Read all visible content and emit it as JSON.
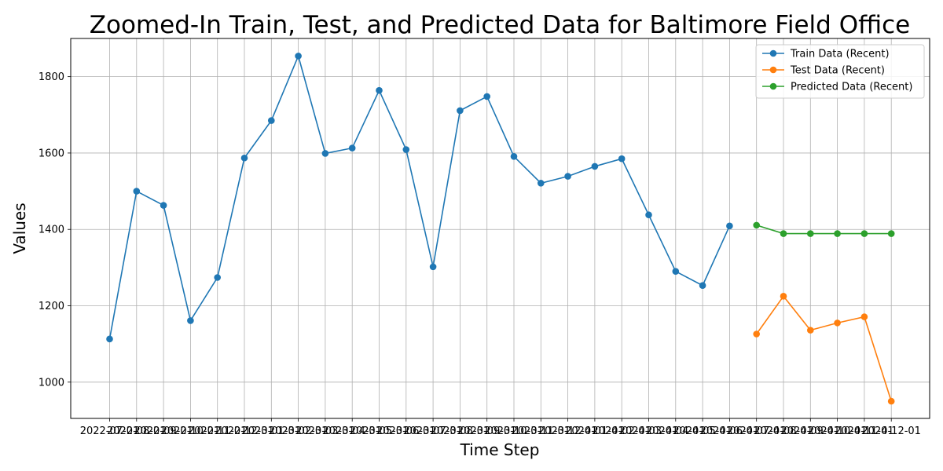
{
  "chart_data": {
    "type": "line",
    "title": "Zoomed-In Train, Test, and Predicted Data for Baltimore Field Office",
    "xlabel": "Time Step",
    "ylabel": "Values",
    "ylim": [
      905,
      1900
    ],
    "yticks": [
      1000,
      1200,
      1400,
      1600,
      1800
    ],
    "grid": true,
    "legend_position": "top-right",
    "x": [
      "2022-07-01",
      "2022-08-01",
      "2022-09-01",
      "2022-10-01",
      "2022-11-01",
      "2022-12-01",
      "2023-01-01",
      "2023-02-01",
      "2023-03-01",
      "2023-04-01",
      "2023-05-01",
      "2023-06-01",
      "2023-07-01",
      "2023-08-01",
      "2023-09-01",
      "2023-10-01",
      "2023-11-01",
      "2023-12-01",
      "2024-01-01",
      "2024-02-01",
      "2024-03-01",
      "2024-04-01",
      "2024-05-01",
      "2024-06-01",
      "2024-07-01",
      "2024-08-01",
      "2024-09-01",
      "2024-10-01",
      "2024-11-01",
      "2024-12-01"
    ],
    "series": [
      {
        "name": "Train Data (Recent)",
        "color": "#1f77b4",
        "x": [
          "2022-07-01",
          "2022-08-01",
          "2022-09-01",
          "2022-10-01",
          "2022-11-01",
          "2022-12-01",
          "2023-01-01",
          "2023-02-01",
          "2023-03-01",
          "2023-04-01",
          "2023-05-01",
          "2023-06-01",
          "2023-07-01",
          "2023-08-01",
          "2023-09-01",
          "2023-10-01",
          "2023-11-01",
          "2023-12-01",
          "2024-01-01",
          "2024-02-01",
          "2024-03-01",
          "2024-04-01",
          "2024-05-01",
          "2024-06-01"
        ],
        "values": [
          1113,
          1500,
          1463,
          1161,
          1274,
          1587,
          1685,
          1854,
          1599,
          1613,
          1764,
          1609,
          1302,
          1711,
          1748,
          1591,
          1521,
          1539,
          1565,
          1585,
          1438,
          1290,
          1253,
          1409
        ]
      },
      {
        "name": "Test Data (Recent)",
        "color": "#ff7f0e",
        "x": [
          "2024-07-01",
          "2024-08-01",
          "2024-09-01",
          "2024-10-01",
          "2024-11-01",
          "2024-12-01"
        ],
        "values": [
          1126,
          1225,
          1136,
          1155,
          1171,
          950
        ]
      },
      {
        "name": "Predicted Data (Recent)",
        "color": "#2ca02c",
        "x": [
          "2024-07-01",
          "2024-08-01",
          "2024-09-01",
          "2024-10-01",
          "2024-11-01",
          "2024-12-01"
        ],
        "values": [
          1411,
          1389,
          1389,
          1389,
          1389,
          1389
        ]
      }
    ]
  }
}
